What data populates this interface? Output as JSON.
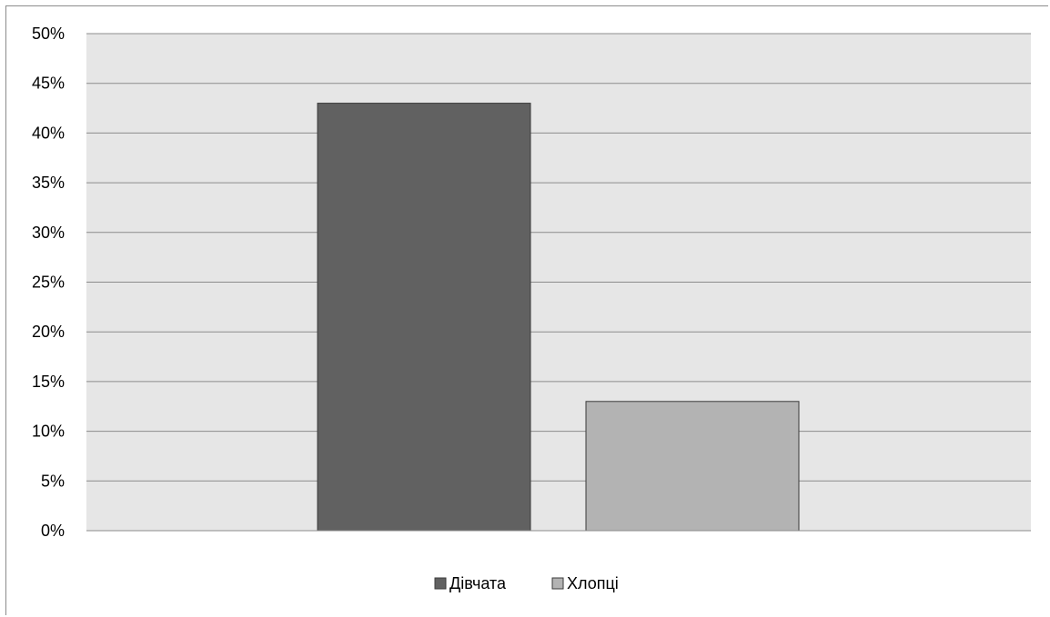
{
  "chart_data": {
    "type": "bar",
    "title": "",
    "xlabel": "",
    "ylabel": "",
    "ylim": [
      0,
      50
    ],
    "y_ticks": [
      "0%",
      "5%",
      "10%",
      "15%",
      "20%",
      "25%",
      "30%",
      "35%",
      "40%",
      "45%",
      "50%"
    ],
    "y_tick_step": 5,
    "grid": true,
    "legend_position": "bottom",
    "plot_background": "#e6e6e6",
    "series": [
      {
        "name": "Дівчата",
        "value": 43,
        "color": "#616161"
      },
      {
        "name": "Хлопці",
        "value": 13,
        "color": "#b3b3b3"
      }
    ]
  }
}
